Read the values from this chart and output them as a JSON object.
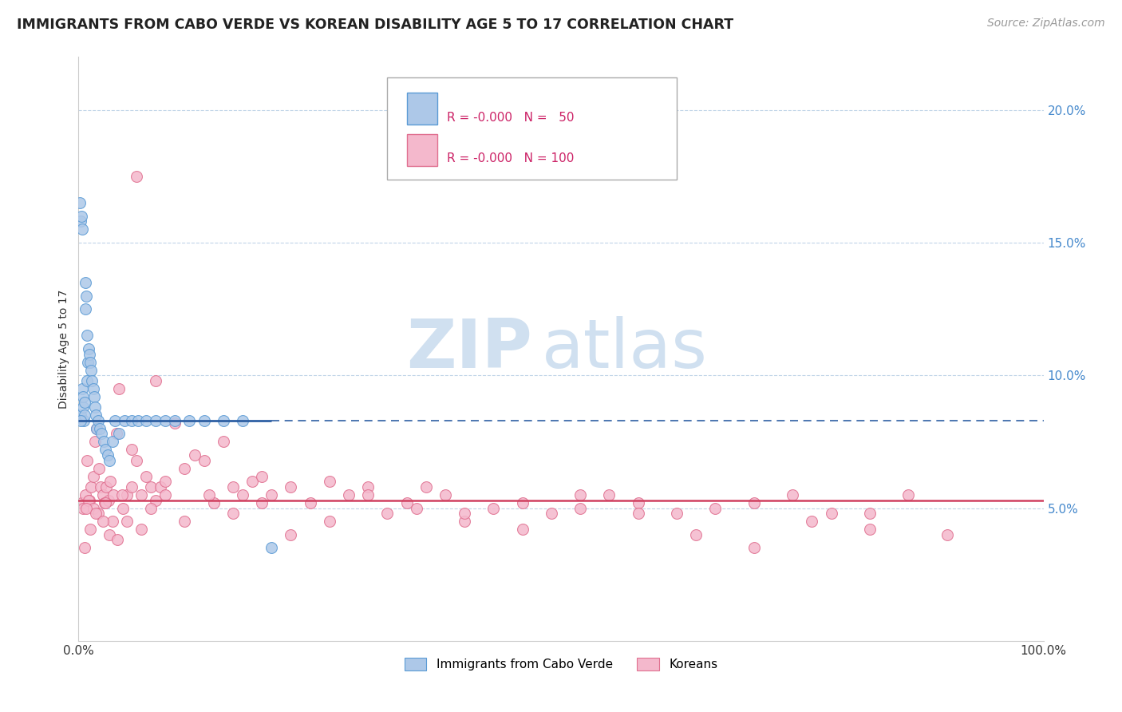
{
  "title": "IMMIGRANTS FROM CABO VERDE VS KOREAN DISABILITY AGE 5 TO 17 CORRELATION CHART",
  "source": "Source: ZipAtlas.com",
  "ylabel": "Disability Age 5 to 17",
  "xlim": [
    0,
    100
  ],
  "ylim": [
    0,
    22
  ],
  "blue_mean": 8.3,
  "pink_mean": 5.3,
  "blue_color": "#adc8e8",
  "blue_edge_color": "#5b9bd5",
  "blue_line_color": "#2e5fa3",
  "pink_color": "#f4b8cc",
  "pink_edge_color": "#e07090",
  "pink_line_color": "#d04060",
  "grid_color": "#c0d4e8",
  "background_color": "#ffffff",
  "watermark_zip": "ZIP",
  "watermark_atlas": "atlas",
  "watermark_color": "#d0e0f0",
  "title_fontsize": 12.5,
  "axis_label_fontsize": 10,
  "tick_fontsize": 11,
  "source_fontsize": 10,
  "blue_scatter_x": [
    0.15,
    0.18,
    0.22,
    0.3,
    0.35,
    0.4,
    0.45,
    0.5,
    0.55,
    0.6,
    0.65,
    0.7,
    0.75,
    0.8,
    0.85,
    0.9,
    0.95,
    1.0,
    1.1,
    1.2,
    1.3,
    1.4,
    1.5,
    1.6,
    1.7,
    1.8,
    1.9,
    2.0,
    2.2,
    2.4,
    2.6,
    2.8,
    3.0,
    3.2,
    3.5,
    3.8,
    4.2,
    4.8,
    5.5,
    6.2,
    7.0,
    8.0,
    9.0,
    10.0,
    11.5,
    13.0,
    15.0,
    17.0,
    20.0,
    0.25
  ],
  "blue_scatter_y": [
    16.5,
    15.8,
    8.5,
    16.0,
    15.5,
    9.5,
    8.8,
    9.2,
    8.3,
    8.5,
    9.0,
    13.5,
    12.5,
    13.0,
    11.5,
    9.8,
    10.5,
    11.0,
    10.8,
    10.5,
    10.2,
    9.8,
    9.5,
    9.2,
    8.8,
    8.5,
    8.0,
    8.3,
    8.0,
    7.8,
    7.5,
    7.2,
    7.0,
    6.8,
    7.5,
    8.3,
    7.8,
    8.3,
    8.3,
    8.3,
    8.3,
    8.3,
    8.3,
    8.3,
    8.3,
    8.3,
    8.3,
    8.3,
    3.5,
    8.3
  ],
  "pink_scatter_x": [
    0.3,
    0.5,
    0.7,
    0.9,
    1.1,
    1.3,
    1.5,
    1.7,
    1.9,
    2.1,
    2.3,
    2.5,
    2.7,
    2.9,
    3.1,
    3.3,
    3.6,
    3.9,
    4.2,
    4.6,
    5.0,
    5.5,
    6.0,
    6.5,
    7.0,
    7.5,
    8.0,
    8.5,
    9.0,
    10.0,
    11.0,
    12.0,
    13.0,
    14.0,
    15.0,
    16.0,
    17.0,
    18.0,
    19.0,
    20.0,
    22.0,
    24.0,
    26.0,
    28.0,
    30.0,
    32.0,
    34.0,
    36.0,
    38.0,
    40.0,
    43.0,
    46.0,
    49.0,
    52.0,
    55.0,
    58.0,
    62.0,
    66.0,
    70.0,
    74.0,
    78.0,
    82.0,
    86.0,
    90.0,
    1.0,
    1.5,
    2.0,
    2.8,
    3.5,
    4.5,
    5.5,
    6.5,
    7.5,
    9.0,
    11.0,
    13.5,
    16.0,
    19.0,
    22.0,
    26.0,
    30.0,
    35.0,
    40.0,
    46.0,
    52.0,
    58.0,
    64.0,
    70.0,
    76.0,
    82.0,
    0.6,
    0.8,
    1.2,
    1.8,
    2.5,
    3.2,
    4.0,
    5.0,
    6.0,
    8.0
  ],
  "pink_scatter_y": [
    5.2,
    5.0,
    5.5,
    6.8,
    5.3,
    5.8,
    6.2,
    7.5,
    8.0,
    6.5,
    5.8,
    5.5,
    5.2,
    5.8,
    5.3,
    6.0,
    5.5,
    7.8,
    9.5,
    5.0,
    5.5,
    7.2,
    6.8,
    5.5,
    6.2,
    5.8,
    5.3,
    5.8,
    5.5,
    8.2,
    6.5,
    7.0,
    6.8,
    5.2,
    7.5,
    5.8,
    5.5,
    6.0,
    6.2,
    5.5,
    5.8,
    5.2,
    6.0,
    5.5,
    5.8,
    4.8,
    5.2,
    5.8,
    5.5,
    4.5,
    5.0,
    5.2,
    4.8,
    5.0,
    5.5,
    5.2,
    4.8,
    5.0,
    3.5,
    5.5,
    4.8,
    4.2,
    5.5,
    4.0,
    5.3,
    5.0,
    4.8,
    5.2,
    4.5,
    5.5,
    5.8,
    4.2,
    5.0,
    6.0,
    4.5,
    5.5,
    4.8,
    5.2,
    4.0,
    4.5,
    5.5,
    5.0,
    4.8,
    4.2,
    5.5,
    4.8,
    4.0,
    5.2,
    4.5,
    4.8,
    3.5,
    5.0,
    4.2,
    4.8,
    4.5,
    4.0,
    3.8,
    4.5,
    17.5,
    9.8
  ]
}
